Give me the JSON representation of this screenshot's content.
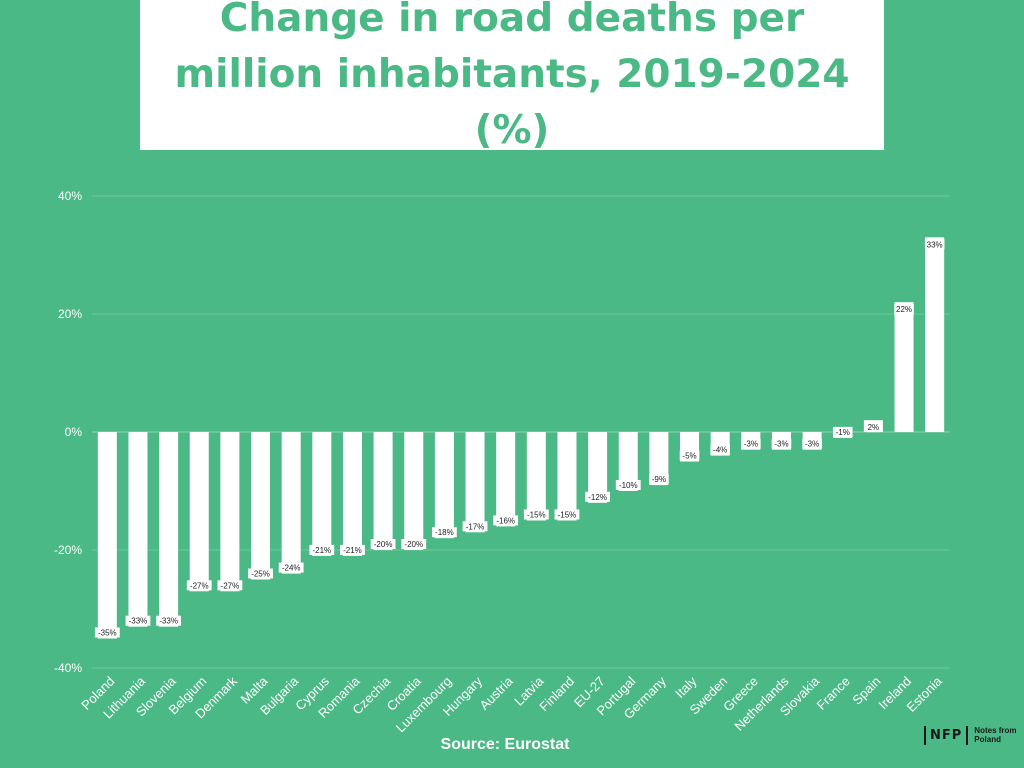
{
  "title": "Change in road deaths per million inhabitants, 2019-2024 (%)",
  "source": "Source: Eurostat",
  "logo": {
    "mark": "NFP",
    "text": "Notes from Poland"
  },
  "colors": {
    "background": "#4bb985",
    "bar": "#ffffff",
    "title": "#4bb985",
    "grid": "#6fc89d"
  },
  "chart_data": {
    "type": "bar",
    "title": "Change in road deaths per million inhabitants, 2019-2024 (%)",
    "xlabel": "",
    "ylabel": "",
    "ylim": [
      -40,
      40
    ],
    "yticks": [
      40,
      20,
      0,
      -20,
      -40
    ],
    "ytick_labels": [
      "40%",
      "20%",
      "0%",
      "-20%",
      "-40%"
    ],
    "grid": true,
    "categories": [
      "Poland",
      "Lithuania",
      "Slovenia",
      "Belgium",
      "Denmark",
      "Malta",
      "Bulgaria",
      "Cyprus",
      "Romania",
      "Czechia",
      "Croatia",
      "Luxembourg",
      "Hungary",
      "Austria",
      "Latvia",
      "Finland",
      "EU-27",
      "Portugal",
      "Germany",
      "Italy",
      "Sweden",
      "Greece",
      "Netherlands",
      "Slovakia",
      "France",
      "Spain",
      "Ireland",
      "Estonia"
    ],
    "values": [
      -35,
      -33,
      -33,
      -27,
      -27,
      -25,
      -24,
      -21,
      -21,
      -20,
      -20,
      -18,
      -17,
      -16,
      -15,
      -15,
      -12,
      -10,
      -9,
      -5,
      -4,
      -3,
      -3,
      -3,
      -1,
      2,
      22,
      33
    ],
    "data_labels": [
      "-35%",
      "-33%",
      "-33%",
      "-27%",
      "-27%",
      "-25%",
      "-24%",
      "-21%",
      "-21%",
      "-20%",
      "-20%",
      "-18%",
      "-17%",
      "-16%",
      "-15%",
      "-15%",
      "-12%",
      "-10%",
      "-9%",
      "-5%",
      "-4%",
      "-3%",
      "-3%",
      "-3%",
      "-1%",
      "2%",
      "22%",
      "33%"
    ]
  }
}
